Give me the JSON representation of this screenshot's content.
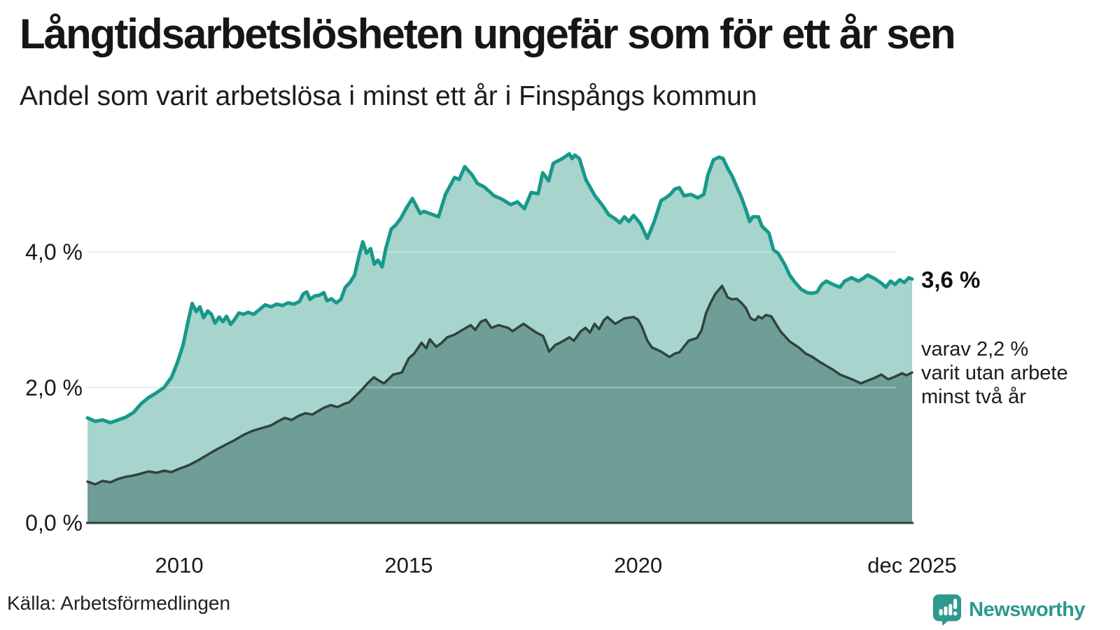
{
  "header": {
    "title": "Långtidsarbetslösheten ungefär som för ett år sen",
    "subtitle": "Andel som varit arbetslösa i minst ett år i Finspångs kommun"
  },
  "footer": {
    "source": "Källa: Arbetsförmedlingen",
    "brand": "Newsworthy"
  },
  "colors": {
    "accent_teal": "#17998a",
    "fill_light": "#a7d4cd",
    "fill_dark": "#6f9e97",
    "line_dark": "#304341",
    "grid": "#e2e2e2",
    "brand_teal": "#2b998e"
  },
  "chart_data": {
    "type": "area",
    "title": "Långtidsarbetslösheten ungefär som för ett år sen",
    "subtitle": "Andel som varit arbetslösa i minst ett år i Finspångs kommun",
    "x_range": [
      2008.0,
      2025.97
    ],
    "y_range": [
      0,
      5.8
    ],
    "grid": "horizontal",
    "legend_position": "none",
    "y_ticks": [
      {
        "value": 0,
        "label": "0,0 %"
      },
      {
        "value": 2,
        "label": "2,0 %"
      },
      {
        "value": 4,
        "label": "4,0 %"
      }
    ],
    "x_ticks": [
      {
        "value": 2010,
        "label": "2010"
      },
      {
        "value": 2015,
        "label": "2015"
      },
      {
        "value": 2020,
        "label": "2020"
      },
      {
        "value": 2025.97,
        "label": "dec 2025"
      }
    ],
    "annotations": {
      "end_value_label": "3,6 %",
      "sub_label_lines": [
        "varav 2,2 %",
        "varit utan arbete",
        "minst två år"
      ]
    },
    "series": [
      {
        "name": "arbetslösa minst ett år",
        "line_color": "#17998a",
        "fill_color": "#a7d4cd",
        "line_width": 5,
        "end_value": 3.6,
        "points": [
          [
            2008.0,
            1.55
          ],
          [
            2008.17,
            1.5
          ],
          [
            2008.33,
            1.52
          ],
          [
            2008.5,
            1.48
          ],
          [
            2008.67,
            1.52
          ],
          [
            2008.83,
            1.56
          ],
          [
            2009.0,
            1.63
          ],
          [
            2009.17,
            1.76
          ],
          [
            2009.33,
            1.85
          ],
          [
            2009.5,
            1.92
          ],
          [
            2009.67,
            2.0
          ],
          [
            2009.83,
            2.15
          ],
          [
            2009.95,
            2.35
          ],
          [
            2010.08,
            2.62
          ],
          [
            2010.2,
            3.0
          ],
          [
            2010.28,
            3.24
          ],
          [
            2010.37,
            3.12
          ],
          [
            2010.45,
            3.19
          ],
          [
            2010.53,
            3.03
          ],
          [
            2010.62,
            3.13
          ],
          [
            2010.7,
            3.08
          ],
          [
            2010.78,
            2.95
          ],
          [
            2010.87,
            3.04
          ],
          [
            2010.95,
            2.97
          ],
          [
            2011.03,
            3.05
          ],
          [
            2011.12,
            2.93
          ],
          [
            2011.2,
            3.0
          ],
          [
            2011.3,
            3.1
          ],
          [
            2011.4,
            3.08
          ],
          [
            2011.5,
            3.11
          ],
          [
            2011.62,
            3.08
          ],
          [
            2011.75,
            3.15
          ],
          [
            2011.87,
            3.22
          ],
          [
            2012.0,
            3.19
          ],
          [
            2012.12,
            3.23
          ],
          [
            2012.25,
            3.21
          ],
          [
            2012.37,
            3.25
          ],
          [
            2012.5,
            3.23
          ],
          [
            2012.62,
            3.27
          ],
          [
            2012.7,
            3.38
          ],
          [
            2012.78,
            3.41
          ],
          [
            2012.85,
            3.3
          ],
          [
            2012.95,
            3.35
          ],
          [
            2013.05,
            3.36
          ],
          [
            2013.15,
            3.4
          ],
          [
            2013.22,
            3.28
          ],
          [
            2013.32,
            3.31
          ],
          [
            2013.42,
            3.25
          ],
          [
            2013.52,
            3.3
          ],
          [
            2013.62,
            3.48
          ],
          [
            2013.72,
            3.55
          ],
          [
            2013.82,
            3.66
          ],
          [
            2013.92,
            3.95
          ],
          [
            2014.0,
            4.15
          ],
          [
            2014.08,
            3.98
          ],
          [
            2014.17,
            4.05
          ],
          [
            2014.25,
            3.82
          ],
          [
            2014.33,
            3.88
          ],
          [
            2014.42,
            3.78
          ],
          [
            2014.5,
            4.05
          ],
          [
            2014.62,
            4.34
          ],
          [
            2014.72,
            4.4
          ],
          [
            2014.83,
            4.5
          ],
          [
            2014.95,
            4.65
          ],
          [
            2015.08,
            4.79
          ],
          [
            2015.25,
            4.57
          ],
          [
            2015.33,
            4.6
          ],
          [
            2015.45,
            4.57
          ],
          [
            2015.65,
            4.52
          ],
          [
            2015.8,
            4.85
          ],
          [
            2016.0,
            5.1
          ],
          [
            2016.1,
            5.07
          ],
          [
            2016.22,
            5.26
          ],
          [
            2016.38,
            5.14
          ],
          [
            2016.5,
            5.01
          ],
          [
            2016.65,
            4.96
          ],
          [
            2016.86,
            4.83
          ],
          [
            2017.03,
            4.78
          ],
          [
            2017.22,
            4.7
          ],
          [
            2017.37,
            4.74
          ],
          [
            2017.52,
            4.64
          ],
          [
            2017.67,
            4.88
          ],
          [
            2017.82,
            4.86
          ],
          [
            2017.92,
            5.17
          ],
          [
            2018.05,
            5.05
          ],
          [
            2018.15,
            5.31
          ],
          [
            2018.35,
            5.38
          ],
          [
            2018.5,
            5.45
          ],
          [
            2018.56,
            5.38
          ],
          [
            2018.62,
            5.43
          ],
          [
            2018.72,
            5.38
          ],
          [
            2018.86,
            5.07
          ],
          [
            2019.06,
            4.83
          ],
          [
            2019.23,
            4.68
          ],
          [
            2019.36,
            4.55
          ],
          [
            2019.5,
            4.49
          ],
          [
            2019.6,
            4.43
          ],
          [
            2019.7,
            4.52
          ],
          [
            2019.8,
            4.45
          ],
          [
            2019.9,
            4.54
          ],
          [
            2020.05,
            4.42
          ],
          [
            2020.2,
            4.2
          ],
          [
            2020.35,
            4.45
          ],
          [
            2020.5,
            4.76
          ],
          [
            2020.6,
            4.8
          ],
          [
            2020.7,
            4.85
          ],
          [
            2020.8,
            4.93
          ],
          [
            2020.9,
            4.95
          ],
          [
            2021.0,
            4.83
          ],
          [
            2021.15,
            4.85
          ],
          [
            2021.3,
            4.8
          ],
          [
            2021.43,
            4.85
          ],
          [
            2021.52,
            5.14
          ],
          [
            2021.64,
            5.36
          ],
          [
            2021.76,
            5.4
          ],
          [
            2021.85,
            5.38
          ],
          [
            2021.97,
            5.21
          ],
          [
            2022.05,
            5.12
          ],
          [
            2022.15,
            4.96
          ],
          [
            2022.25,
            4.81
          ],
          [
            2022.35,
            4.62
          ],
          [
            2022.43,
            4.45
          ],
          [
            2022.5,
            4.52
          ],
          [
            2022.62,
            4.52
          ],
          [
            2022.7,
            4.38
          ],
          [
            2022.85,
            4.28
          ],
          [
            2022.95,
            4.03
          ],
          [
            2023.05,
            3.98
          ],
          [
            2023.2,
            3.81
          ],
          [
            2023.3,
            3.66
          ],
          [
            2023.42,
            3.55
          ],
          [
            2023.55,
            3.45
          ],
          [
            2023.68,
            3.4
          ],
          [
            2023.8,
            3.39
          ],
          [
            2023.9,
            3.41
          ],
          [
            2024.0,
            3.52
          ],
          [
            2024.1,
            3.57
          ],
          [
            2024.25,
            3.52
          ],
          [
            2024.4,
            3.48
          ],
          [
            2024.5,
            3.57
          ],
          [
            2024.65,
            3.62
          ],
          [
            2024.8,
            3.57
          ],
          [
            2024.9,
            3.61
          ],
          [
            2025.0,
            3.66
          ],
          [
            2025.15,
            3.61
          ],
          [
            2025.3,
            3.54
          ],
          [
            2025.4,
            3.48
          ],
          [
            2025.5,
            3.57
          ],
          [
            2025.6,
            3.52
          ],
          [
            2025.7,
            3.59
          ],
          [
            2025.8,
            3.55
          ],
          [
            2025.9,
            3.62
          ],
          [
            2025.97,
            3.6
          ]
        ]
      },
      {
        "name": "varav utan arbete minst två år",
        "line_color": "#304341",
        "fill_color": "#6f9e97",
        "line_width": 3.5,
        "end_value": 2.2,
        "points": [
          [
            2008.0,
            0.61
          ],
          [
            2008.17,
            0.57
          ],
          [
            2008.33,
            0.62
          ],
          [
            2008.5,
            0.6
          ],
          [
            2008.67,
            0.65
          ],
          [
            2008.83,
            0.68
          ],
          [
            2009.0,
            0.7
          ],
          [
            2009.17,
            0.73
          ],
          [
            2009.33,
            0.76
          ],
          [
            2009.5,
            0.74
          ],
          [
            2009.67,
            0.77
          ],
          [
            2009.83,
            0.75
          ],
          [
            2010.0,
            0.8
          ],
          [
            2010.2,
            0.85
          ],
          [
            2010.4,
            0.92
          ],
          [
            2010.6,
            1.0
          ],
          [
            2010.8,
            1.08
          ],
          [
            2011.0,
            1.15
          ],
          [
            2011.2,
            1.22
          ],
          [
            2011.4,
            1.3
          ],
          [
            2011.6,
            1.36
          ],
          [
            2011.8,
            1.4
          ],
          [
            2012.0,
            1.44
          ],
          [
            2012.15,
            1.5
          ],
          [
            2012.3,
            1.55
          ],
          [
            2012.45,
            1.52
          ],
          [
            2012.6,
            1.58
          ],
          [
            2012.75,
            1.62
          ],
          [
            2012.9,
            1.6
          ],
          [
            2013.0,
            1.64
          ],
          [
            2013.15,
            1.7
          ],
          [
            2013.3,
            1.74
          ],
          [
            2013.45,
            1.71
          ],
          [
            2013.6,
            1.76
          ],
          [
            2013.7,
            1.78
          ],
          [
            2013.85,
            1.88
          ],
          [
            2014.0,
            1.98
          ],
          [
            2014.1,
            2.06
          ],
          [
            2014.24,
            2.15
          ],
          [
            2014.35,
            2.1
          ],
          [
            2014.46,
            2.06
          ],
          [
            2014.66,
            2.19
          ],
          [
            2014.85,
            2.22
          ],
          [
            2015.0,
            2.43
          ],
          [
            2015.12,
            2.5
          ],
          [
            2015.28,
            2.66
          ],
          [
            2015.38,
            2.58
          ],
          [
            2015.46,
            2.71
          ],
          [
            2015.6,
            2.6
          ],
          [
            2015.72,
            2.66
          ],
          [
            2015.84,
            2.74
          ],
          [
            2016.0,
            2.78
          ],
          [
            2016.2,
            2.86
          ],
          [
            2016.35,
            2.92
          ],
          [
            2016.45,
            2.85
          ],
          [
            2016.57,
            2.97
          ],
          [
            2016.68,
            3.0
          ],
          [
            2016.8,
            2.88
          ],
          [
            2016.96,
            2.92
          ],
          [
            2017.17,
            2.88
          ],
          [
            2017.26,
            2.83
          ],
          [
            2017.5,
            2.94
          ],
          [
            2017.63,
            2.88
          ],
          [
            2017.78,
            2.81
          ],
          [
            2017.93,
            2.76
          ],
          [
            2018.06,
            2.53
          ],
          [
            2018.2,
            2.63
          ],
          [
            2018.3,
            2.66
          ],
          [
            2018.5,
            2.74
          ],
          [
            2018.6,
            2.69
          ],
          [
            2018.75,
            2.83
          ],
          [
            2018.85,
            2.88
          ],
          [
            2018.95,
            2.81
          ],
          [
            2019.05,
            2.94
          ],
          [
            2019.15,
            2.86
          ],
          [
            2019.25,
            2.99
          ],
          [
            2019.33,
            3.04
          ],
          [
            2019.5,
            2.94
          ],
          [
            2019.7,
            3.02
          ],
          [
            2019.9,
            3.04
          ],
          [
            2020.0,
            3.0
          ],
          [
            2020.08,
            2.9
          ],
          [
            2020.2,
            2.69
          ],
          [
            2020.3,
            2.59
          ],
          [
            2020.5,
            2.53
          ],
          [
            2020.68,
            2.45
          ],
          [
            2020.8,
            2.5
          ],
          [
            2020.9,
            2.52
          ],
          [
            2021.1,
            2.69
          ],
          [
            2021.28,
            2.73
          ],
          [
            2021.38,
            2.84
          ],
          [
            2021.48,
            3.1
          ],
          [
            2021.58,
            3.25
          ],
          [
            2021.68,
            3.38
          ],
          [
            2021.83,
            3.5
          ],
          [
            2021.95,
            3.33
          ],
          [
            2022.05,
            3.3
          ],
          [
            2022.15,
            3.31
          ],
          [
            2022.25,
            3.25
          ],
          [
            2022.35,
            3.17
          ],
          [
            2022.45,
            3.02
          ],
          [
            2022.55,
            2.99
          ],
          [
            2022.62,
            3.05
          ],
          [
            2022.7,
            3.02
          ],
          [
            2022.78,
            3.07
          ],
          [
            2022.9,
            3.05
          ],
          [
            2023.1,
            2.83
          ],
          [
            2023.3,
            2.68
          ],
          [
            2023.5,
            2.59
          ],
          [
            2023.65,
            2.5
          ],
          [
            2023.8,
            2.45
          ],
          [
            2023.95,
            2.38
          ],
          [
            2024.1,
            2.32
          ],
          [
            2024.25,
            2.26
          ],
          [
            2024.4,
            2.19
          ],
          [
            2024.55,
            2.15
          ],
          [
            2024.7,
            2.11
          ],
          [
            2024.85,
            2.06
          ],
          [
            2025.0,
            2.1
          ],
          [
            2025.15,
            2.14
          ],
          [
            2025.3,
            2.19
          ],
          [
            2025.45,
            2.12
          ],
          [
            2025.6,
            2.16
          ],
          [
            2025.75,
            2.21
          ],
          [
            2025.85,
            2.18
          ],
          [
            2025.97,
            2.22
          ]
        ]
      }
    ]
  }
}
